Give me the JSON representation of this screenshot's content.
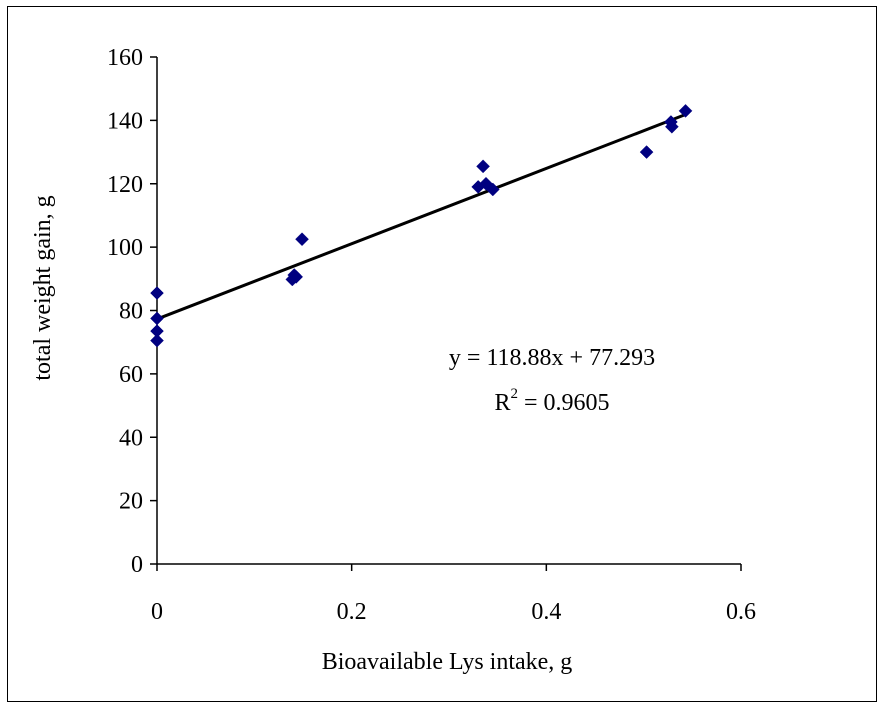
{
  "chart_data": {
    "type": "scatter",
    "title": "",
    "xlabel": "Bioavailable Lys intake, g",
    "ylabel": "total weight gain, g",
    "xlim": [
      0,
      0.6
    ],
    "ylim": [
      0,
      160
    ],
    "x_ticks": [
      0,
      0.2,
      0.4,
      0.6
    ],
    "x_tick_labels": [
      "0",
      "0.2",
      "0.4",
      "0.6"
    ],
    "y_ticks": [
      0,
      20,
      40,
      60,
      80,
      100,
      120,
      140,
      160
    ],
    "y_tick_labels": [
      "0",
      "20",
      "40",
      "60",
      "80",
      "100",
      "120",
      "140",
      "160"
    ],
    "grid": false,
    "legend": "none",
    "marker": "diamond",
    "marker_color": "#000080",
    "series": [
      {
        "points": [
          {
            "x": 0.0,
            "y": 85.5
          },
          {
            "x": 0.0,
            "y": 77.5
          },
          {
            "x": 0.0,
            "y": 73.5
          },
          {
            "x": 0.0,
            "y": 70.5
          },
          {
            "x": 0.139,
            "y": 89.8
          },
          {
            "x": 0.141,
            "y": 91.2
          },
          {
            "x": 0.143,
            "y": 90.6
          },
          {
            "x": 0.149,
            "y": 102.5
          },
          {
            "x": 0.33,
            "y": 119.0
          },
          {
            "x": 0.335,
            "y": 125.5
          },
          {
            "x": 0.338,
            "y": 120.0
          },
          {
            "x": 0.345,
            "y": 118.2
          },
          {
            "x": 0.503,
            "y": 130.0
          },
          {
            "x": 0.528,
            "y": 139.5
          },
          {
            "x": 0.529,
            "y": 138.0
          },
          {
            "x": 0.543,
            "y": 143.0
          }
        ]
      }
    ],
    "trendline": {
      "type": "linear",
      "slope": 118.88,
      "intercept": 77.293,
      "x_range": [
        0,
        0.543
      ],
      "color": "#000000"
    },
    "annotations": {
      "equation": "y = 118.88x + 77.293",
      "r2_prefix": "R",
      "r2_superscript": "2",
      "r2_value": " = 0.9605"
    }
  }
}
